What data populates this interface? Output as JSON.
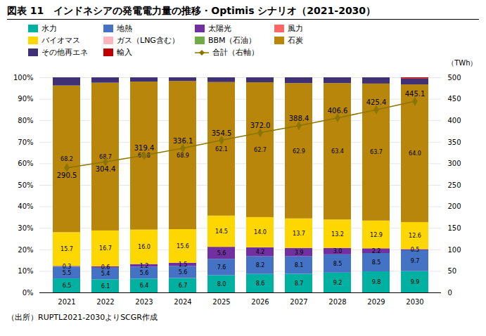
{
  "chart_data": {
    "type": "bar",
    "stacked": true,
    "title": "図表 11　インドネシアの発電電力量の推移・Optimis シナリオ（2021-2030）",
    "caption": "（出所）RUPTL2021-2030よりSCGR作成",
    "y2label": "（TWh）",
    "categories": [
      "2021",
      "2022",
      "2023",
      "2024",
      "2025",
      "2026",
      "2027",
      "2028",
      "2029",
      "2030"
    ],
    "ylim": [
      0,
      100
    ],
    "yticks": [
      {
        "value": 0,
        "label": "0%"
      },
      {
        "value": 10,
        "label": "10%"
      },
      {
        "value": 20,
        "label": "20%"
      },
      {
        "value": 30,
        "label": "30%"
      },
      {
        "value": 40,
        "label": "40%"
      },
      {
        "value": 50,
        "label": "50%"
      },
      {
        "value": 60,
        "label": "60%"
      },
      {
        "value": 70,
        "label": "70%"
      },
      {
        "value": 80,
        "label": "80%"
      },
      {
        "value": 90,
        "label": "90%"
      },
      {
        "value": 100,
        "label": "100%"
      }
    ],
    "y2lim": [
      0,
      500
    ],
    "y2ticks": [
      0,
      50,
      100,
      150,
      200,
      250,
      300,
      350,
      400,
      450,
      500
    ],
    "grid": true,
    "legend": "top",
    "series": [
      {
        "name": "水力",
        "color": "#00B0A0",
        "values": [
          6.5,
          6.1,
          6.4,
          6.7,
          8.0,
          8.6,
          8.7,
          9.2,
          9.8,
          9.9
        ],
        "data_labels": true,
        "value_labels": [
          "6.5",
          "6.1",
          "6.4",
          "6.7",
          "8.0",
          "8.6",
          "8.7",
          "9.2",
          "9.8",
          "9.9"
        ]
      },
      {
        "name": "地熱",
        "color": "#4472C4",
        "values": [
          5.5,
          5.4,
          5.6,
          5.6,
          7.6,
          8.2,
          8.1,
          8.5,
          8.5,
          9.7
        ],
        "data_labels": true,
        "value_labels": [
          "5.5",
          "5.4",
          "5.6",
          "5.6",
          "7.6",
          "8.2",
          "8.1",
          "8.5",
          "8.5",
          "9.7"
        ]
      },
      {
        "name": "太陽光",
        "color": "#7030A0",
        "values": [
          0.3,
          0.6,
          1.2,
          1.5,
          5.6,
          4.2,
          3.9,
          3.0,
          2.2,
          0.5
        ],
        "data_labels": true,
        "value_labels": [
          "0.3",
          "0.6",
          "1.2",
          "1.5",
          "5.6",
          "4.2",
          "3.9",
          "3.0",
          "2.2",
          "0.5"
        ]
      },
      {
        "name": "風力",
        "color": "#FF6666",
        "values": [
          0.0,
          0.0,
          0.0,
          0.0,
          0.0,
          0.0,
          0.0,
          0.0,
          0.0,
          0.0
        ]
      },
      {
        "name": "バイオマス",
        "color": "#FFD700",
        "values": [
          15.7,
          16.7,
          16.0,
          15.6,
          14.5,
          14.0,
          13.7,
          13.2,
          12.9,
          12.6
        ],
        "data_labels": true,
        "value_labels": [
          "15.7",
          "16.7",
          "16.0",
          "15.6",
          "14.5",
          "14.0",
          "13.7",
          "13.2",
          "12.9",
          "12.6"
        ]
      },
      {
        "name": "ガス（LNG含む）",
        "color": "#FFB6C1",
        "values": [
          0.0,
          0.0,
          0.0,
          0.0,
          0.0,
          0.0,
          0.0,
          0.0,
          0.0,
          0.0
        ]
      },
      {
        "name": "BBM（石油）",
        "color": "#70AD47",
        "values": [
          0.0,
          0.0,
          0.0,
          0.0,
          0.0,
          0.0,
          0.0,
          0.0,
          0.0,
          0.0
        ]
      },
      {
        "name": "石炭",
        "color": "#B8860B",
        "values": [
          68.2,
          68.7,
          68.8,
          68.9,
          62.1,
          62.7,
          62.9,
          63.4,
          63.7,
          64.0
        ],
        "data_labels": true,
        "value_labels": [
          "68.2",
          "68.7",
          "68.8",
          "68.9",
          "62.1",
          "62.7",
          "62.9",
          "63.4",
          "63.7",
          "64.0"
        ]
      },
      {
        "name": "その他再エネ",
        "color": "#3F3173",
        "values": [
          3.8,
          2.5,
          2.0,
          1.7,
          2.2,
          2.3,
          2.7,
          2.7,
          2.9,
          2.8
        ]
      },
      {
        "name": "輸入",
        "color": "#C00000",
        "values": [
          0.0,
          0.0,
          0.0,
          0.0,
          0.0,
          0.0,
          0.0,
          0.0,
          0.0,
          0.5
        ]
      },
      {
        "name": "合計（右軸）",
        "type": "line",
        "axis": "y2",
        "color": "#8B7500",
        "marker": "diamond",
        "values": [
          290.5,
          304.4,
          319.4,
          336.1,
          354.5,
          372.0,
          388.4,
          406.6,
          425.4,
          445.1
        ],
        "data_labels": true,
        "value_labels": [
          "290.5",
          "304.4",
          "319.4",
          "336.1",
          "354.5",
          "372.0",
          "388.4",
          "406.6",
          "425.4",
          "445.1"
        ]
      }
    ]
  }
}
